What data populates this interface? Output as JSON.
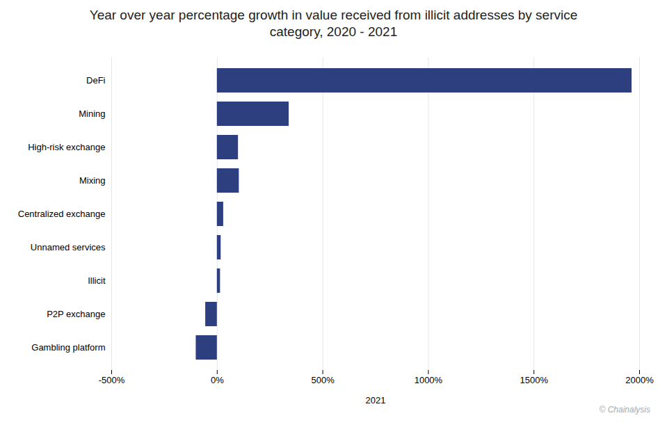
{
  "chart_data": {
    "type": "bar",
    "orientation": "horizontal",
    "title": "Year over year percentage growth in value received from illicit addresses by service\ncategory, 2020 - 2021",
    "xlabel": "2021",
    "categories": [
      "DeFi",
      "Mining",
      "High-risk exchange",
      "Mixing",
      "Centralized exchange",
      "Unnamed services",
      "Illicit",
      "P2P exchange",
      "Gambling platform"
    ],
    "values": [
      1964,
      340,
      100,
      104,
      30,
      18,
      15,
      -55,
      -100
    ],
    "color": "#2e3f7f",
    "xlim": [
      -500,
      2000
    ],
    "xticks": [
      {
        "value": -500,
        "label": "-500%"
      },
      {
        "value": 0,
        "label": "0%"
      },
      {
        "value": 500,
        "label": "500%"
      },
      {
        "value": 1000,
        "label": "1000%"
      },
      {
        "value": 1500,
        "label": "1500%"
      },
      {
        "value": 2000,
        "label": "2000%"
      }
    ],
    "grid": true,
    "annotations": [
      "© Chainalysis"
    ]
  }
}
